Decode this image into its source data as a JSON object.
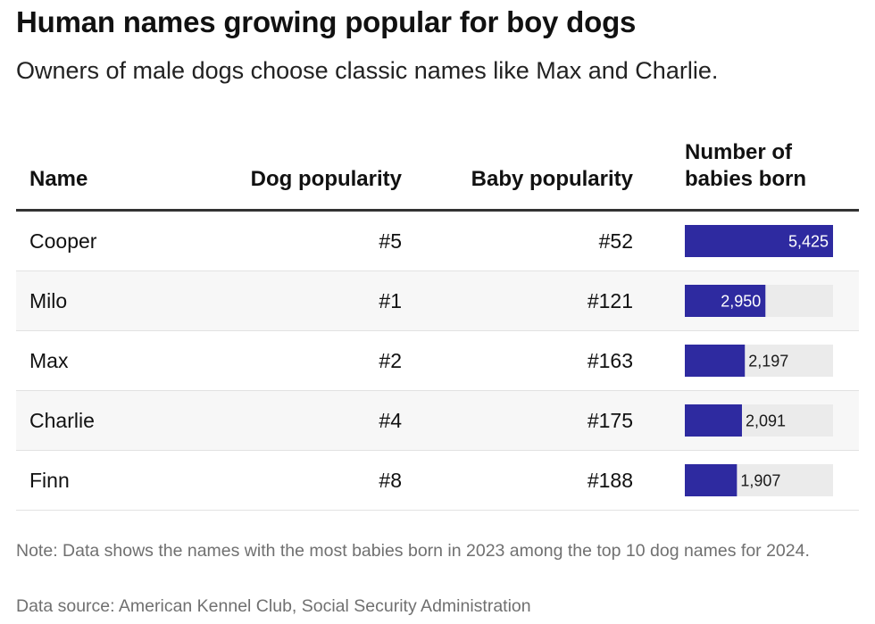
{
  "title": "Human names growing popular for boy dogs",
  "subtitle": "Owners of male dogs choose classic names like Max and Charlie.",
  "columns": {
    "name": "Name",
    "dog": "Dog popularity",
    "baby": "Baby popularity",
    "babies": "Number of babies born"
  },
  "chart_data": {
    "type": "table",
    "columns": [
      "Name",
      "Dog popularity",
      "Baby popularity",
      "Number of babies born"
    ],
    "rows": [
      {
        "name": "Cooper",
        "dog_rank": "#5",
        "baby_rank": "#52",
        "babies": 5425,
        "babies_label": "5,425"
      },
      {
        "name": "Milo",
        "dog_rank": "#1",
        "baby_rank": "#121",
        "babies": 2950,
        "babies_label": "2,950"
      },
      {
        "name": "Max",
        "dog_rank": "#2",
        "baby_rank": "#163",
        "babies": 2197,
        "babies_label": "2,197"
      },
      {
        "name": "Charlie",
        "dog_rank": "#4",
        "baby_rank": "#175",
        "babies": 2091,
        "babies_label": "2,091"
      },
      {
        "name": "Finn",
        "dog_rank": "#8",
        "baby_rank": "#188",
        "babies": 1907,
        "babies_label": "1,907"
      }
    ],
    "bar_max": 5425
  },
  "colors": {
    "bar": "#2e2aa0",
    "track": "#ebebeb",
    "label_inside": "#ffffff",
    "label_outside": "#1a1a1a"
  },
  "footer": {
    "note": "Note: Data shows the names with the most babies born in 2023 among the top 10 dog names for 2024.",
    "source": "Data source: American Kennel Club, Social Security Administration"
  }
}
